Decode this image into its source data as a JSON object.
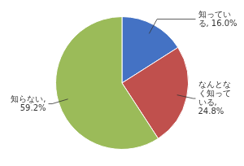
{
  "chart_data": {
    "type": "pie",
    "values": [
      16.0,
      24.8,
      59.2
    ],
    "value_labels": [
      "知ってい\nる, 16.0%",
      "なんとな\nく知って\nいる,\n24.8%",
      "知らない,\n59.2%"
    ],
    "colors": [
      "#4472C4",
      "#C0504D",
      "#9BBB59"
    ],
    "data_labels": true
  }
}
